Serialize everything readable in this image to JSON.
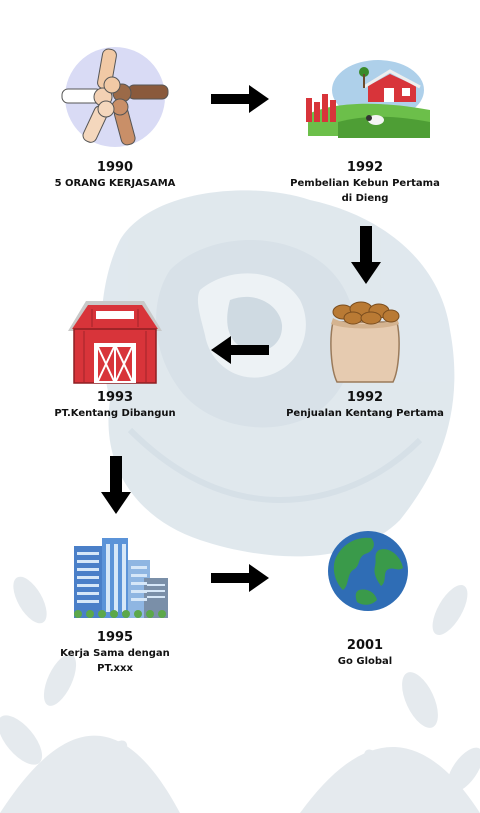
{
  "timeline": [
    {
      "year": "1990",
      "label": "5 ORANG KERJASAMA",
      "icon": "teamwork-fists-icon"
    },
    {
      "year": "1992",
      "label": "Pembelian Kebun Pertama di Dieng",
      "icon": "farm-field-icon"
    },
    {
      "year": "1992",
      "label": "Penjualan Kentang Pertama",
      "icon": "potato-sack-icon"
    },
    {
      "year": "1993",
      "label": "PT.Kentang Dibangun",
      "icon": "red-barn-icon"
    },
    {
      "year": "1995",
      "label": "Kerja Sama dengan PT.xxx",
      "icon": "office-buildings-icon"
    },
    {
      "year": "2001",
      "label": "Go Global",
      "icon": "globe-icon"
    }
  ],
  "colors": {
    "arrow": "#000000",
    "rose": "#c9d8e2",
    "barn_red": "#d8343a",
    "earth_blue": "#2f6db5",
    "earth_green": "#3a9a4a"
  }
}
